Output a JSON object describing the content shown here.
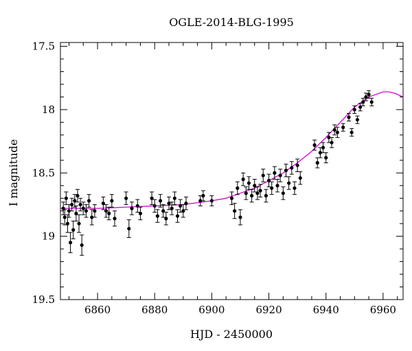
{
  "chart_data": {
    "type": "scatter",
    "title": "OGLE-2014-BLG-1995",
    "xlabel": "HJD - 2450000",
    "ylabel": "I magnitude",
    "xlim": [
      6847,
      6967
    ],
    "ylim": [
      17.47,
      19.5
    ],
    "y_inverted": true,
    "xticks": [
      6860,
      6880,
      6900,
      6920,
      6940,
      6960
    ],
    "xtick_labels": [
      "6860",
      "6880",
      "6900",
      "6920",
      "6940",
      "6960"
    ],
    "yticks": [
      17.5,
      18,
      18.5,
      19,
      19.5
    ],
    "ytick_labels": [
      "17.5",
      "18",
      "18.5",
      "19",
      "19.5"
    ],
    "grid": false,
    "colors": {
      "data": "#000000",
      "model": "#d400d4"
    },
    "series": [
      {
        "kind": "points_with_errorbars",
        "x": [
          6848,
          6848.5,
          6849,
          6849.5,
          6850,
          6850.5,
          6851,
          6851.5,
          6852,
          6852.5,
          6853,
          6853.5,
          6854,
          6854.5,
          6855,
          6856,
          6857,
          6858,
          6859,
          6862,
          6863,
          6864,
          6865,
          6866,
          6870,
          6871,
          6872,
          6874,
          6875,
          6879,
          6880,
          6881,
          6882,
          6883,
          6884,
          6885,
          6886,
          6887,
          6888,
          6889,
          6890,
          6891,
          6896,
          6897,
          6900,
          6907,
          6908,
          6909,
          6910,
          6911,
          6912,
          6913,
          6914,
          6915,
          6916,
          6917,
          6918,
          6919,
          6920,
          6921,
          6922,
          6923,
          6924,
          6925,
          6926,
          6927,
          6928,
          6929,
          6930,
          6931,
          6936,
          6937,
          6938,
          6939,
          6940,
          6941,
          6942,
          6943,
          6944,
          6946,
          6948,
          6949,
          6950,
          6951,
          6952,
          6953,
          6954,
          6955,
          6956
        ],
        "y": [
          18.78,
          18.85,
          18.7,
          18.9,
          18.8,
          19.05,
          18.75,
          18.95,
          18.72,
          18.82,
          18.68,
          18.9,
          18.75,
          19.07,
          18.78,
          18.8,
          18.72,
          18.85,
          18.8,
          18.74,
          18.8,
          18.82,
          18.72,
          18.86,
          18.7,
          18.94,
          18.78,
          18.76,
          18.82,
          18.7,
          18.76,
          18.84,
          18.72,
          18.8,
          18.86,
          18.74,
          18.78,
          18.7,
          18.84,
          18.76,
          18.8,
          18.74,
          18.72,
          18.68,
          18.72,
          18.7,
          18.8,
          18.62,
          18.85,
          18.55,
          18.66,
          18.58,
          18.68,
          18.6,
          18.66,
          18.64,
          18.52,
          18.68,
          18.56,
          18.62,
          18.5,
          18.6,
          18.52,
          18.66,
          18.48,
          18.58,
          18.46,
          18.62,
          18.44,
          18.54,
          18.28,
          18.42,
          18.34,
          18.3,
          18.38,
          18.22,
          18.26,
          18.16,
          18.18,
          18.14,
          18.06,
          18.18,
          18.0,
          18.08,
          17.98,
          17.94,
          17.9,
          17.88,
          17.94
        ],
        "err": [
          0.05,
          0.06,
          0.05,
          0.07,
          0.05,
          0.08,
          0.05,
          0.07,
          0.05,
          0.06,
          0.05,
          0.07,
          0.05,
          0.08,
          0.05,
          0.05,
          0.05,
          0.06,
          0.05,
          0.05,
          0.05,
          0.05,
          0.05,
          0.06,
          0.05,
          0.07,
          0.05,
          0.05,
          0.05,
          0.05,
          0.05,
          0.05,
          0.05,
          0.05,
          0.05,
          0.05,
          0.05,
          0.05,
          0.05,
          0.05,
          0.05,
          0.05,
          0.04,
          0.04,
          0.04,
          0.05,
          0.06,
          0.05,
          0.06,
          0.05,
          0.05,
          0.05,
          0.05,
          0.05,
          0.05,
          0.05,
          0.05,
          0.05,
          0.05,
          0.05,
          0.05,
          0.05,
          0.05,
          0.05,
          0.05,
          0.05,
          0.05,
          0.05,
          0.05,
          0.05,
          0.04,
          0.04,
          0.04,
          0.04,
          0.04,
          0.04,
          0.04,
          0.04,
          0.04,
          0.03,
          0.03,
          0.03,
          0.03,
          0.03,
          0.03,
          0.03,
          0.03,
          0.03,
          0.03
        ]
      },
      {
        "kind": "model_curve",
        "x": [
          6847,
          6860,
          6870,
          6880,
          6890,
          6900,
          6905,
          6910,
          6915,
          6920,
          6925,
          6930,
          6935,
          6940,
          6945,
          6950,
          6955,
          6960,
          6962,
          6964,
          6967
        ],
        "y": [
          18.78,
          18.78,
          18.77,
          18.76,
          18.75,
          18.72,
          18.7,
          18.66,
          18.62,
          18.56,
          18.5,
          18.42,
          18.33,
          18.22,
          18.1,
          17.98,
          17.9,
          17.86,
          17.86,
          17.87,
          17.9
        ]
      }
    ]
  }
}
